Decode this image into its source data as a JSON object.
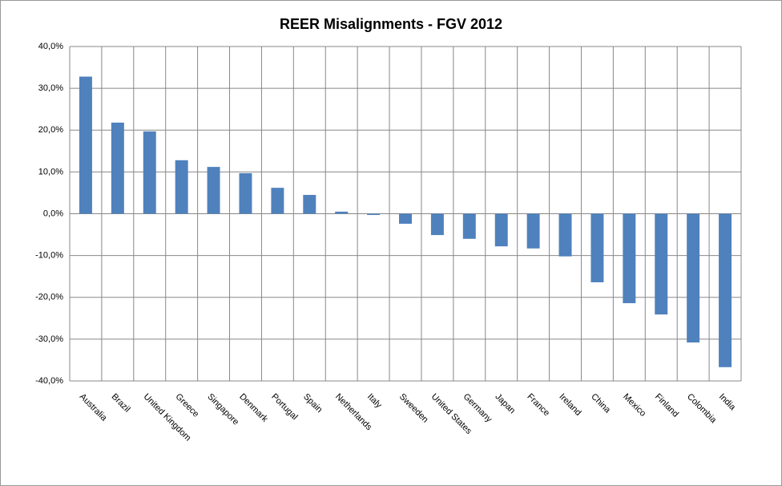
{
  "chart_data": {
    "type": "bar",
    "title": "REER Misalignments - FGV 2012",
    "categories": [
      "Australia",
      "Brazil",
      "United Kingdom",
      "Greece",
      "Singapore",
      "Denmark",
      "Portugal",
      "Spain",
      "Netherlands",
      "Italy",
      "Sweeden",
      "United States",
      "Germany",
      "Japan",
      "France",
      "Ireland",
      "China",
      "Mexico",
      "Finland",
      "Colombia",
      "India"
    ],
    "values": [
      32.8,
      21.8,
      19.7,
      12.8,
      11.2,
      9.7,
      6.2,
      4.5,
      0.5,
      -0.3,
      -2.4,
      -5.1,
      -6.0,
      -7.8,
      -8.3,
      -10.2,
      -16.4,
      -21.4,
      -24.1,
      -30.8,
      -36.7
    ],
    "color": "#4f81bd",
    "ylim": [
      -40,
      40
    ],
    "yticks": [
      {
        "value": -40,
        "label": "-40,0%"
      },
      {
        "value": -30,
        "label": "-30,0%"
      },
      {
        "value": -20,
        "label": "-20,0%"
      },
      {
        "value": -10,
        "label": "-10,0%"
      },
      {
        "value": 0,
        "label": "0,0%"
      },
      {
        "value": 10,
        "label": "10,0%"
      },
      {
        "value": 20,
        "label": "20,0%"
      },
      {
        "value": 30,
        "label": "30,0%"
      },
      {
        "value": 40,
        "label": "40,0%"
      }
    ],
    "grid": true
  }
}
